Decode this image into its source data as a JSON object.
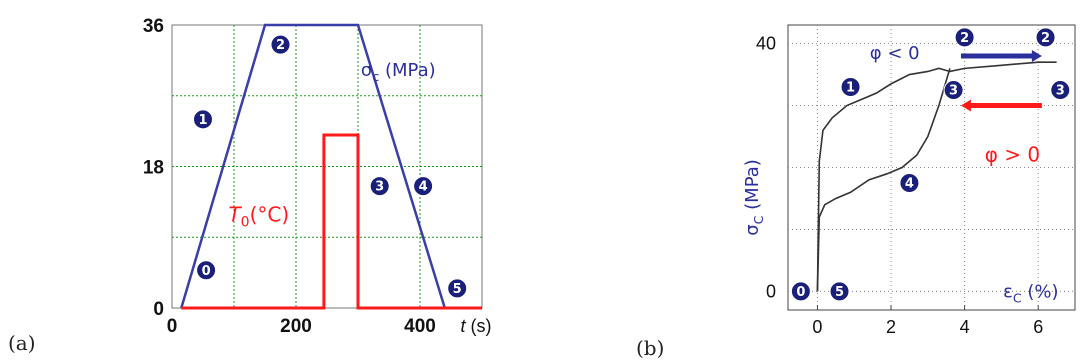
{
  "chart_data": [
    {
      "panel_label": "(a)",
      "type": "line",
      "xlim": [
        0,
        500
      ],
      "ylim": [
        0,
        36
      ],
      "x_ticks": [
        0,
        200,
        400
      ],
      "y_ticks": [
        0,
        18,
        36
      ],
      "x_tick_labels": [
        "0",
        "200",
        "400"
      ],
      "y_tick_labels": [
        "0",
        "18",
        "36"
      ],
      "xlabel_italic": "t",
      "xlabel_unit": " (s)",
      "grid": true,
      "series": [
        {
          "name_main": "σ",
          "name_sub": "c",
          "name_unit": " (MPa)",
          "color": "#3a3ea8",
          "x": [
            15,
            150,
            300,
            440,
            500
          ],
          "y": [
            0,
            36,
            36,
            0,
            0
          ]
        },
        {
          "name_main": "T",
          "name_sub": "0",
          "name_unit": "(°C)",
          "color": "#ff1a1a",
          "x": [
            15,
            245,
            245,
            300,
            300,
            500
          ],
          "y": [
            0,
            0,
            22,
            22,
            0,
            0
          ]
        }
      ],
      "markers": [
        {
          "label": "0",
          "x": 55,
          "y": 4.8
        },
        {
          "label": "1",
          "x": 50,
          "y": 24
        },
        {
          "label": "2",
          "x": 175,
          "y": 33.5
        },
        {
          "label": "3",
          "x": 335,
          "y": 15.5
        },
        {
          "label": "4",
          "x": 405,
          "y": 15.5
        },
        {
          "label": "5",
          "x": 460,
          "y": 2.5
        }
      ]
    },
    {
      "panel_label": "(b)",
      "type": "line",
      "xlim": [
        -0.8,
        7
      ],
      "ylim": [
        -3,
        43
      ],
      "x_ticks": [
        0,
        2,
        4,
        6
      ],
      "y_ticks": [
        0,
        40
      ],
      "x_tick_labels": [
        "0",
        "2",
        "4",
        "6"
      ],
      "y_tick_labels": [
        "0",
        "40"
      ],
      "ylabel_main": "σ",
      "ylabel_sub": "C",
      "ylabel_unit": " (MPa)",
      "xlabel_main": "ε",
      "xlabel_sub": "C",
      "xlabel_unit": " (%)",
      "grid": true,
      "series": [
        {
          "color": "#333333",
          "x": [
            0,
            0.05,
            0.15,
            0.4,
            0.8,
            1.2,
            1.6,
            2.0,
            2.5,
            3.0,
            3.3,
            3.6,
            4.0,
            5.0,
            6.0,
            6.5
          ],
          "y": [
            0,
            21,
            26,
            28,
            30,
            31,
            32,
            33.5,
            35,
            35.5,
            36,
            35.5,
            36,
            36.5,
            37,
            37
          ],
          "segment": "loading"
        },
        {
          "color": "#333333",
          "x": [
            0,
            0.05,
            0.2,
            0.5,
            0.9,
            1.4,
            1.9,
            2.3,
            2.7,
            3.0,
            3.3,
            3.6
          ],
          "y": [
            0,
            12,
            14,
            15,
            16,
            18,
            19,
            20,
            22,
            25,
            30,
            36
          ],
          "segment": "unloading"
        }
      ],
      "annotations": [
        {
          "text_main": "φ",
          "text_rest": " < 0",
          "color": "#2b2f9e",
          "x": 2.1,
          "y": 37.5
        },
        {
          "text_main": "φ",
          "text_rest": " > 0",
          "color": "#ff1a1a",
          "x": 5.3,
          "y": 21
        }
      ],
      "arrows": [
        {
          "color": "#2b2f9e",
          "x_from": 3.9,
          "x_to": 6.1,
          "y": 38
        },
        {
          "color": "#ff1a1a",
          "x_from": 6.1,
          "x_to": 3.9,
          "y": 30
        }
      ],
      "markers": [
        {
          "label": "0",
          "x": -0.45,
          "y": 0
        },
        {
          "label": "5",
          "x": 0.6,
          "y": 0
        },
        {
          "label": "1",
          "x": 0.9,
          "y": 33
        },
        {
          "label": "2",
          "x": 4.0,
          "y": 41
        },
        {
          "label": "2",
          "x": 6.2,
          "y": 41
        },
        {
          "label": "3",
          "x": 3.7,
          "y": 32.5
        },
        {
          "label": "3",
          "x": 6.6,
          "y": 32.5
        },
        {
          "label": "4",
          "x": 2.5,
          "y": 17.5
        }
      ]
    }
  ]
}
